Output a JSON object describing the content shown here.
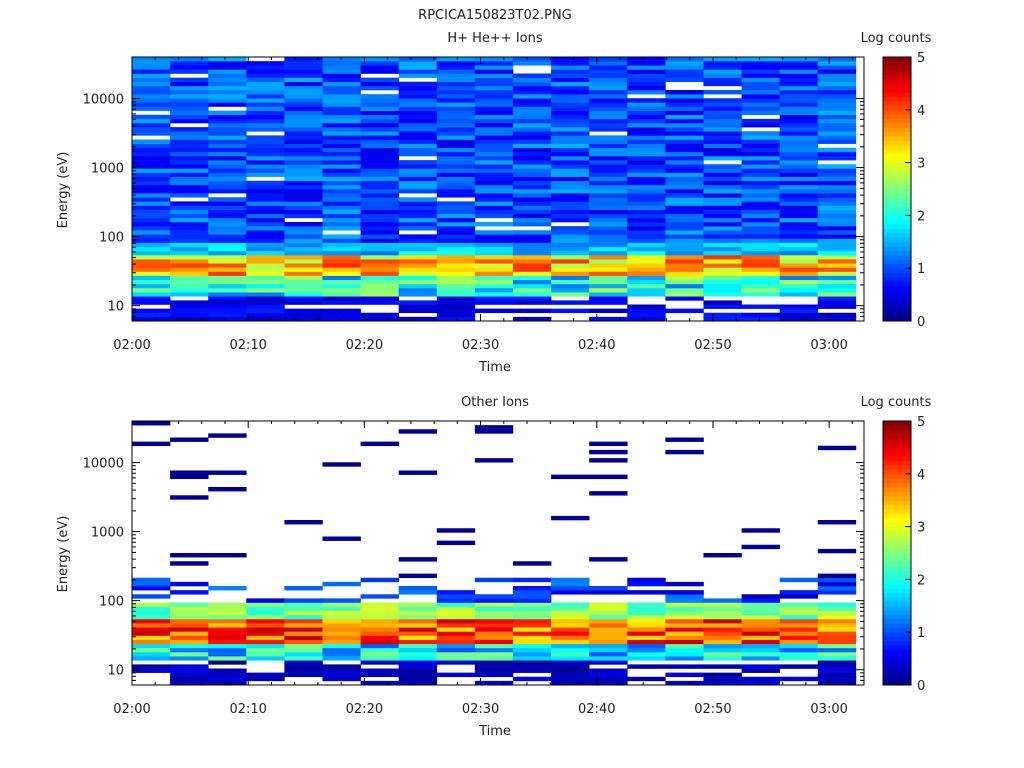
{
  "figure_title": "RPCICA150823T02.PNG",
  "chart_data": [
    {
      "type": "heatmap",
      "title": "H+ He++ Ions",
      "xlabel": "Time",
      "ylabel": "Energy (eV)",
      "x_ticks": [
        "02:00",
        "02:10",
        "02:20",
        "02:30",
        "02:40",
        "02:50",
        "03:00"
      ],
      "x_range_minutes": [
        0,
        63
      ],
      "y_scale": "log",
      "y_ticks": [
        10,
        100,
        1000,
        10000
      ],
      "y_tick_labels": [
        "10",
        "100",
        "1000",
        "10000"
      ],
      "y_range": [
        6,
        40000
      ],
      "colorbar": {
        "label": "Log counts",
        "range": [
          0,
          5
        ],
        "ticks": [
          0,
          1,
          2,
          3,
          4,
          5
        ]
      },
      "time_columns": 19,
      "energy_bins": 64,
      "grid": false
    },
    {
      "type": "heatmap",
      "title": "Other Ions",
      "xlabel": "Time",
      "ylabel": "Energy (eV)",
      "x_ticks": [
        "02:00",
        "02:10",
        "02:20",
        "02:30",
        "02:40",
        "02:50",
        "03:00"
      ],
      "x_range_minutes": [
        0,
        63
      ],
      "y_scale": "log",
      "y_ticks": [
        10,
        100,
        1000,
        10000
      ],
      "y_tick_labels": [
        "10",
        "100",
        "1000",
        "10000"
      ],
      "y_range": [
        6,
        40000
      ],
      "colorbar": {
        "label": "Log counts",
        "range": [
          0,
          5
        ],
        "ticks": [
          0,
          1,
          2,
          3,
          4,
          5
        ]
      },
      "time_columns": 19,
      "energy_bins": 64,
      "grid": false
    }
  ]
}
